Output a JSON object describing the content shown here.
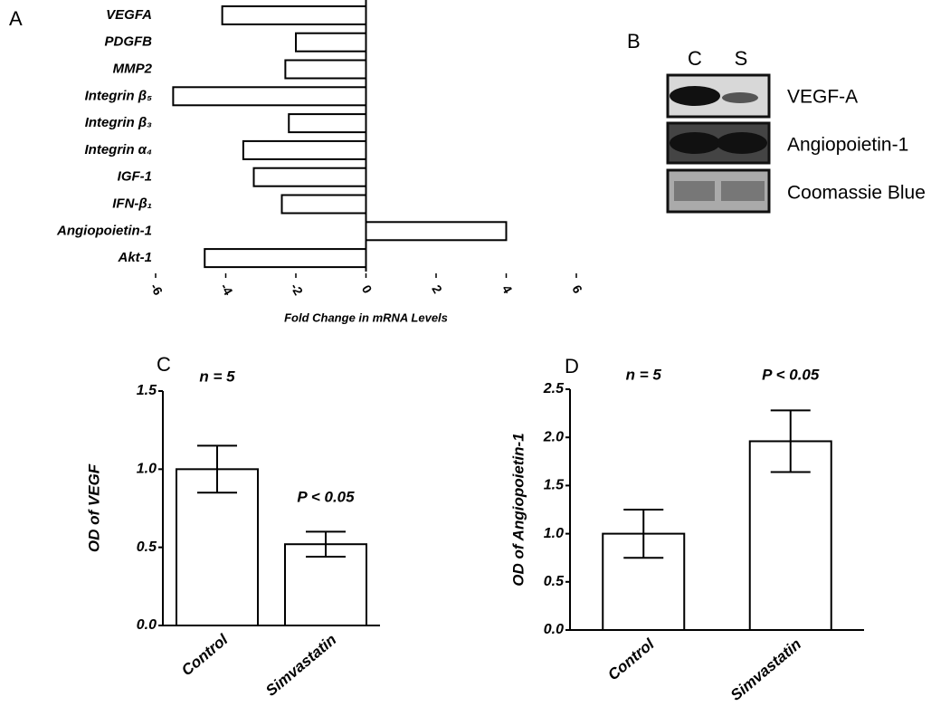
{
  "blot": {
    "panel_label": "B",
    "lanes": [
      "C",
      "S"
    ],
    "rows": [
      "VEGF-A",
      "Angiopoietin-1",
      "Coomassie Blue"
    ]
  },
  "chart_data": [
    {
      "type": "barh",
      "panel_label": "A",
      "xlabel": "Fold Change in mRNA Levels",
      "categories": [
        "VEGFA",
        "PDGFB",
        "MMP2",
        "Integrin β₅",
        "Integrin β₃",
        "Integrin α₄",
        "IGF-1",
        "IFN-β₁",
        "Angiopoietin-1",
        "Akt-1"
      ],
      "values": [
        -4.1,
        -2.0,
        -2.3,
        -5.5,
        -2.2,
        -3.5,
        -3.2,
        -2.4,
        4.0,
        -4.6
      ],
      "color": "#ffffff",
      "xlim": [
        -6,
        6
      ],
      "xticks": [
        -6,
        -4,
        -2,
        0,
        2,
        4,
        6
      ]
    },
    {
      "type": "bar",
      "panel_label": "C",
      "ylabel": "OD of VEGF",
      "categories": [
        "Control",
        "Simvastatin"
      ],
      "values": [
        1.0,
        0.52
      ],
      "errors": [
        0.15,
        0.08
      ],
      "annotations": [
        "n = 5",
        "P < 0.05"
      ],
      "color": "#ffffff",
      "ylim": [
        0,
        1.5
      ],
      "yticks": [
        {
          "value": 0,
          "label": "0.0"
        },
        0.5,
        {
          "value": 1,
          "label": "1.0"
        },
        1.5
      ]
    },
    {
      "type": "bar",
      "panel_label": "D",
      "ylabel": "OD of Angiopoietin-1",
      "categories": [
        "Control",
        "Simvastatin"
      ],
      "values": [
        1.0,
        1.96
      ],
      "errors": [
        0.25,
        0.32
      ],
      "annotations": [
        "n = 5",
        "P < 0.05"
      ],
      "color": "#ffffff",
      "ylim": [
        0,
        2.5
      ],
      "yticks": [
        {
          "value": 0,
          "label": "0.0"
        },
        0.5,
        {
          "value": 1,
          "label": "1.0"
        },
        1.5,
        {
          "value": 2,
          "label": "2.0"
        },
        2.5
      ]
    }
  ]
}
